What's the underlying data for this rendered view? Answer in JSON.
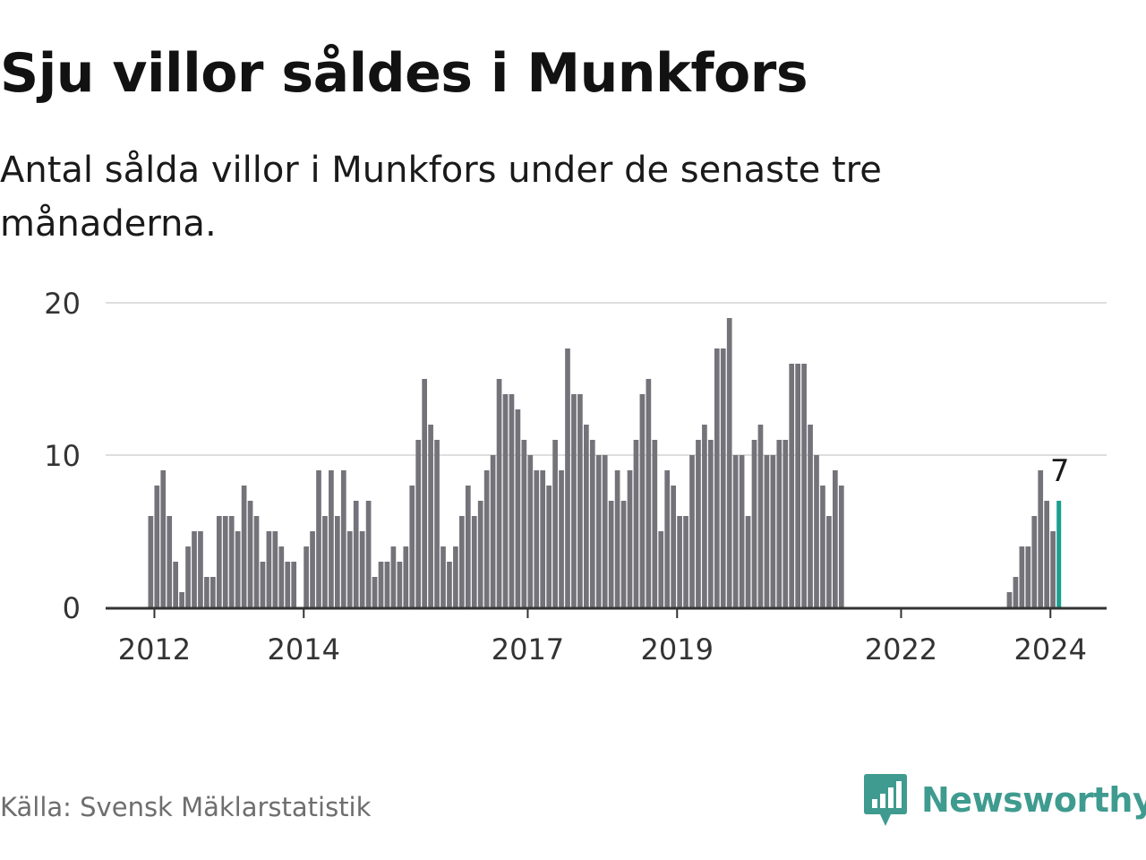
{
  "title": "Sju villor såldes i Munkfors",
  "subtitle": "Antal sålda villor i Munkfors under de senaste tre månaderna.",
  "source": "Källa: Svensk Mäklarstatistik",
  "brand": "Newsworthy",
  "colors": {
    "bar": "#74737a",
    "highlight": "#1a9e8f",
    "grid": "#dedede",
    "axis": "#333333",
    "brand": "#3f9b8f"
  },
  "chart_data": {
    "type": "bar",
    "title": "Sju villor såldes i Munkfors",
    "xlabel": "",
    "ylabel": "",
    "ylim": [
      0,
      20
    ],
    "yticks": [
      0,
      10,
      20
    ],
    "x_start": "2011-12",
    "x_ticks": [
      {
        "label": "2012",
        "index": 1
      },
      {
        "label": "2014",
        "index": 25
      },
      {
        "label": "2017",
        "index": 61
      },
      {
        "label": "2019",
        "index": 85
      },
      {
        "label": "2022",
        "index": 121
      },
      {
        "label": "2024",
        "index": 145
      }
    ],
    "values": [
      6,
      8,
      9,
      6,
      3,
      1,
      4,
      5,
      5,
      2,
      2,
      6,
      6,
      6,
      5,
      8,
      7,
      6,
      3,
      5,
      5,
      4,
      3,
      3,
      0,
      4,
      5,
      9,
      6,
      9,
      6,
      9,
      5,
      7,
      5,
      7,
      2,
      3,
      3,
      4,
      3,
      4,
      8,
      11,
      15,
      12,
      11,
      4,
      3,
      4,
      6,
      8,
      6,
      7,
      9,
      10,
      15,
      14,
      14,
      13,
      11,
      10,
      9,
      9,
      8,
      11,
      9,
      17,
      14,
      14,
      12,
      11,
      10,
      10,
      7,
      9,
      7,
      9,
      11,
      14,
      15,
      11,
      5,
      9,
      8,
      6,
      6,
      10,
      11,
      12,
      11,
      17,
      17,
      19,
      10,
      10,
      6,
      11,
      12,
      10,
      10,
      11,
      11,
      16,
      16,
      16,
      12,
      10,
      8,
      6,
      9,
      8,
      0,
      0,
      0,
      0,
      0,
      0,
      0,
      0,
      0,
      0,
      0,
      0,
      0,
      0,
      0,
      0,
      0,
      0,
      0,
      0,
      0,
      0,
      0,
      0,
      0,
      0,
      1,
      2,
      4,
      4,
      6,
      9,
      7,
      5,
      7
    ],
    "highlight_index": 146,
    "highlight_label": "7"
  }
}
